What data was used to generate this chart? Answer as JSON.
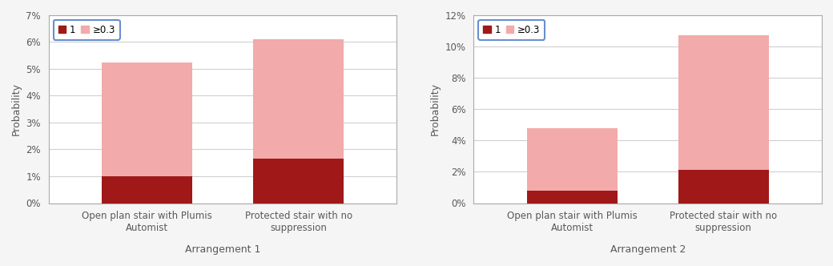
{
  "chart1": {
    "title": "Arrangement 1",
    "ylabel": "Probability",
    "ylim": [
      0,
      0.07
    ],
    "yticks": [
      0,
      0.01,
      0.02,
      0.03,
      0.04,
      0.05,
      0.06,
      0.07
    ],
    "ytick_labels": [
      "0%",
      "1%",
      "2%",
      "3%",
      "4%",
      "5%",
      "6%",
      "7%"
    ],
    "categories": [
      "Open plan stair with Plumis\nAutomist",
      "Protected stair with no\nsuppression"
    ],
    "values_1": [
      0.01,
      0.0165
    ],
    "values_03": [
      0.0425,
      0.0445
    ]
  },
  "chart2": {
    "title": "Arrangement 2",
    "ylabel": "Probability",
    "ylim": [
      0,
      0.12
    ],
    "yticks": [
      0,
      0.02,
      0.04,
      0.06,
      0.08,
      0.1,
      0.12
    ],
    "ytick_labels": [
      "0%",
      "2%",
      "4%",
      "6%",
      "8%",
      "10%",
      "12%"
    ],
    "categories": [
      "Open plan stair with Plumis\nAutomist",
      "Protected stair with no\nsuppression"
    ],
    "values_1": [
      0.008,
      0.021
    ],
    "values_03": [
      0.04,
      0.086
    ]
  },
  "color_1": "#a01818",
  "color_03": "#f2aaaa",
  "legend_labels": [
    "1",
    "≥0.3"
  ],
  "legend_box_color": "#4472c4",
  "bar_width": 0.6,
  "font_color": "#595959",
  "spine_color": "#aaaaaa",
  "grid_color": "#d0d0d0",
  "fig_bg": "#f5f5f5"
}
